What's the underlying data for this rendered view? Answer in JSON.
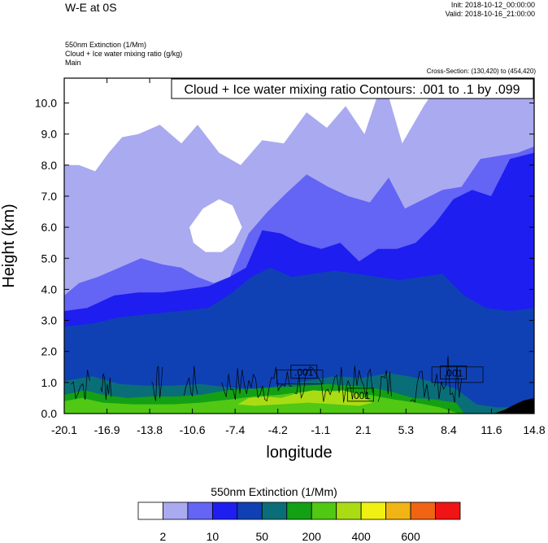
{
  "header": {
    "title": "W-E at 0S",
    "init": "Init: 2018-10-12_00:00:00",
    "valid": "Valid: 2018-10-16_21:00:00",
    "line1": "550nm Extinction   (1/Mm)",
    "line2": "Cloud + Ice water mixing ratio   (g/kg)",
    "line3": "Main",
    "cross_section": "Cross-Section: (130,420) to (454,420)"
  },
  "chart_data": {
    "type": "heatmap",
    "title": "Cloud + Ice water mixing ratio Contours: .001 to .1 by .099",
    "xlabel": "longitude",
    "ylabel": "Height (km)",
    "x_ticks": [
      "-20.1",
      "-16.9",
      "-13.8",
      "-10.6",
      "-7.4",
      "-4.2",
      "-1.1",
      "2.1",
      "5.3",
      "8.4",
      "11.6",
      "14.8"
    ],
    "y_ticks": [
      "0.0",
      "1.0",
      "2.0",
      "3.0",
      "4.0",
      "5.0",
      "6.0",
      "7.0",
      "8.0",
      "9.0",
      "10.0"
    ],
    "xlim": [
      -20.1,
      14.8
    ],
    "ylim": [
      0,
      10.8
    ],
    "contour_labels": [
      {
        "text": ".001",
        "x": -2.3,
        "y": 1.32
      },
      {
        "text": ".001",
        "x": 8.8,
        "y": 1.3
      },
      {
        "text": ".001",
        "x": 1.9,
        "y": 0.58
      }
    ],
    "bands": [
      {
        "color": "#aaaaf0",
        "top": [
          [
            -20.1,
            8.0
          ],
          [
            -19.0,
            8.0
          ],
          [
            -17.8,
            7.8
          ],
          [
            -16.8,
            8.4
          ],
          [
            -15.8,
            8.9
          ],
          [
            -14.6,
            9.0
          ],
          [
            -13.0,
            9.3
          ],
          [
            -11.4,
            8.7
          ],
          [
            -10.2,
            9.3
          ],
          [
            -8.6,
            8.4
          ],
          [
            -7.0,
            8.0
          ],
          [
            -5.4,
            8.8
          ],
          [
            -3.8,
            8.7
          ],
          [
            -2.1,
            9.7
          ],
          [
            -0.6,
            9.2
          ],
          [
            0.8,
            9.9
          ],
          [
            2.2,
            9.0
          ],
          [
            3.6,
            10.8
          ],
          [
            5.0,
            8.7
          ],
          [
            6.6,
            9.9
          ],
          [
            8.0,
            10.8
          ],
          [
            9.6,
            10.8
          ],
          [
            11.2,
            10.8
          ],
          [
            13.0,
            10.8
          ],
          [
            14.8,
            10.8
          ]
        ]
      },
      {
        "color": "#ffffff",
        "top": [
          [
            -10.8,
            6.0
          ],
          [
            -9.8,
            6.6
          ],
          [
            -8.6,
            6.9
          ],
          [
            -7.6,
            6.7
          ],
          [
            -6.9,
            6.0
          ],
          [
            -7.5,
            5.5
          ],
          [
            -8.4,
            5.2
          ],
          [
            -9.6,
            5.2
          ],
          [
            -10.5,
            5.5
          ]
        ]
      },
      {
        "color": "#6464f5",
        "top": [
          [
            -20.1,
            3.8
          ],
          [
            -19.0,
            4.2
          ],
          [
            -17.6,
            4.4
          ],
          [
            -16.0,
            4.7
          ],
          [
            -14.4,
            5.0
          ],
          [
            -12.8,
            4.8
          ],
          [
            -11.4,
            4.7
          ],
          [
            -10.2,
            4.4
          ],
          [
            -9.0,
            4.2
          ],
          [
            -7.8,
            4.4
          ],
          [
            -6.4,
            5.8
          ],
          [
            -5.0,
            6.5
          ],
          [
            -3.6,
            7.1
          ],
          [
            -2.1,
            7.7
          ],
          [
            -0.5,
            7.3
          ],
          [
            1.0,
            7.0
          ],
          [
            2.6,
            6.8
          ],
          [
            4.0,
            7.6
          ],
          [
            5.2,
            6.6
          ],
          [
            6.6,
            6.9
          ],
          [
            8.0,
            7.2
          ],
          [
            9.4,
            7.3
          ],
          [
            10.8,
            8.2
          ],
          [
            12.2,
            8.3
          ],
          [
            13.6,
            8.4
          ],
          [
            14.8,
            8.6
          ]
        ]
      },
      {
        "color": "#1e1ef0",
        "top": [
          [
            -20.1,
            3.3
          ],
          [
            -18.4,
            3.4
          ],
          [
            -16.4,
            3.8
          ],
          [
            -14.6,
            3.9
          ],
          [
            -12.8,
            3.9
          ],
          [
            -11.0,
            4.0
          ],
          [
            -9.4,
            4.1
          ],
          [
            -7.8,
            4.4
          ],
          [
            -6.6,
            4.7
          ],
          [
            -5.4,
            5.9
          ],
          [
            -4.0,
            5.8
          ],
          [
            -2.6,
            5.5
          ],
          [
            -1.0,
            5.3
          ],
          [
            0.4,
            5.5
          ],
          [
            1.8,
            4.9
          ],
          [
            3.2,
            5.3
          ],
          [
            4.6,
            5.3
          ],
          [
            6.0,
            5.5
          ],
          [
            7.4,
            6.1
          ],
          [
            8.8,
            6.9
          ],
          [
            10.2,
            7.2
          ],
          [
            11.6,
            7.0
          ],
          [
            13.0,
            8.2
          ],
          [
            14.8,
            8.4
          ]
        ]
      },
      {
        "color": "#0f41b4",
        "top": [
          [
            -20.1,
            2.8
          ],
          [
            -18.0,
            2.9
          ],
          [
            -16.0,
            3.1
          ],
          [
            -13.8,
            3.2
          ],
          [
            -11.6,
            3.3
          ],
          [
            -9.4,
            3.4
          ],
          [
            -7.6,
            3.9
          ],
          [
            -6.2,
            4.4
          ],
          [
            -4.8,
            4.7
          ],
          [
            -3.2,
            4.4
          ],
          [
            -1.6,
            4.5
          ],
          [
            0.0,
            4.6
          ],
          [
            1.6,
            4.5
          ],
          [
            3.2,
            4.4
          ],
          [
            4.8,
            4.3
          ],
          [
            6.4,
            4.4
          ],
          [
            8.0,
            4.5
          ],
          [
            9.6,
            3.8
          ],
          [
            11.2,
            3.4
          ],
          [
            13.0,
            3.3
          ],
          [
            14.8,
            3.4
          ]
        ]
      },
      {
        "color": "#0a6e78",
        "top": [
          [
            -20.1,
            1.05
          ],
          [
            -18.0,
            1.2
          ],
          [
            -16.0,
            0.95
          ],
          [
            -14.0,
            0.9
          ],
          [
            -12.0,
            0.9
          ],
          [
            -10.0,
            0.95
          ],
          [
            -8.0,
            0.85
          ],
          [
            -6.0,
            0.8
          ],
          [
            -4.0,
            0.9
          ],
          [
            -2.0,
            1.05
          ],
          [
            0.0,
            1.2
          ],
          [
            2.0,
            1.15
          ],
          [
            4.0,
            1.3
          ],
          [
            5.5,
            1.2
          ],
          [
            7.0,
            1.05
          ],
          [
            9.0,
            0.8
          ],
          [
            10.5,
            0.3
          ],
          [
            12.0,
            0.2
          ],
          [
            14.8,
            0.2
          ]
        ]
      },
      {
        "color": "#14a014",
        "top": [
          [
            -20.1,
            0.6
          ],
          [
            -18.6,
            0.75
          ],
          [
            -17.2,
            0.6
          ],
          [
            -15.4,
            0.5
          ],
          [
            -13.6,
            0.55
          ],
          [
            -11.8,
            0.55
          ],
          [
            -10.0,
            0.6
          ],
          [
            -8.0,
            0.75
          ],
          [
            -6.0,
            0.8
          ],
          [
            -4.0,
            0.85
          ],
          [
            -2.0,
            0.9
          ],
          [
            -0.5,
            0.95
          ],
          [
            1.0,
            0.9
          ],
          [
            2.6,
            0.85
          ],
          [
            4.2,
            0.7
          ],
          [
            5.8,
            0.5
          ],
          [
            7.4,
            0.45
          ],
          [
            9.0,
            0.35
          ],
          [
            9.6,
            0.0
          ],
          [
            14.8,
            0.0
          ]
        ]
      },
      {
        "color": "#50c814",
        "top": [
          [
            -20.1,
            0.4
          ],
          [
            -18.8,
            0.5
          ],
          [
            -17.2,
            0.35
          ],
          [
            -15.0,
            0.3
          ],
          [
            -12.0,
            0.3
          ],
          [
            -10.0,
            0.35
          ],
          [
            -7.8,
            0.45
          ],
          [
            -6.0,
            0.55
          ],
          [
            -4.2,
            0.6
          ],
          [
            -2.4,
            0.7
          ],
          [
            -0.6,
            0.75
          ],
          [
            1.0,
            0.7
          ],
          [
            2.6,
            0.6
          ],
          [
            4.4,
            0.45
          ],
          [
            6.0,
            0.35
          ],
          [
            7.8,
            0.2
          ],
          [
            9.2,
            0.0
          ],
          [
            14.8,
            0.0
          ]
        ]
      },
      {
        "color": "#aadc14",
        "top": [
          [
            -7.2,
            0.3
          ],
          [
            -6.4,
            0.5
          ],
          [
            -5.2,
            0.55
          ],
          [
            -4.0,
            0.5
          ],
          [
            -2.8,
            0.65
          ],
          [
            -1.6,
            0.75
          ],
          [
            -0.4,
            0.7
          ],
          [
            0.6,
            0.75
          ],
          [
            1.8,
            0.6
          ],
          [
            2.8,
            0.35
          ],
          [
            1.8,
            0.25
          ],
          [
            0.0,
            0.3
          ],
          [
            -2.0,
            0.35
          ],
          [
            -4.0,
            0.3
          ],
          [
            -6.0,
            0.25
          ]
        ]
      },
      {
        "color": "#000000",
        "top": [
          [
            11.8,
            0.0
          ],
          [
            12.6,
            0.12
          ],
          [
            13.4,
            0.3
          ],
          [
            14.0,
            0.42
          ],
          [
            14.8,
            0.5
          ],
          [
            14.8,
            0.0
          ]
        ]
      }
    ],
    "colorbar": {
      "title": "550nm Extinction  (1/Mm)",
      "colors": [
        "#ffffff",
        "#aaaaf0",
        "#6464f5",
        "#1e1ef0",
        "#0f41b4",
        "#0a6e78",
        "#14a014",
        "#50c814",
        "#aadc14",
        "#f0f014",
        "#f0b414",
        "#f06414",
        "#f01414"
      ],
      "labels": [
        "2",
        "10",
        "50",
        "200",
        "400",
        "600"
      ]
    }
  }
}
